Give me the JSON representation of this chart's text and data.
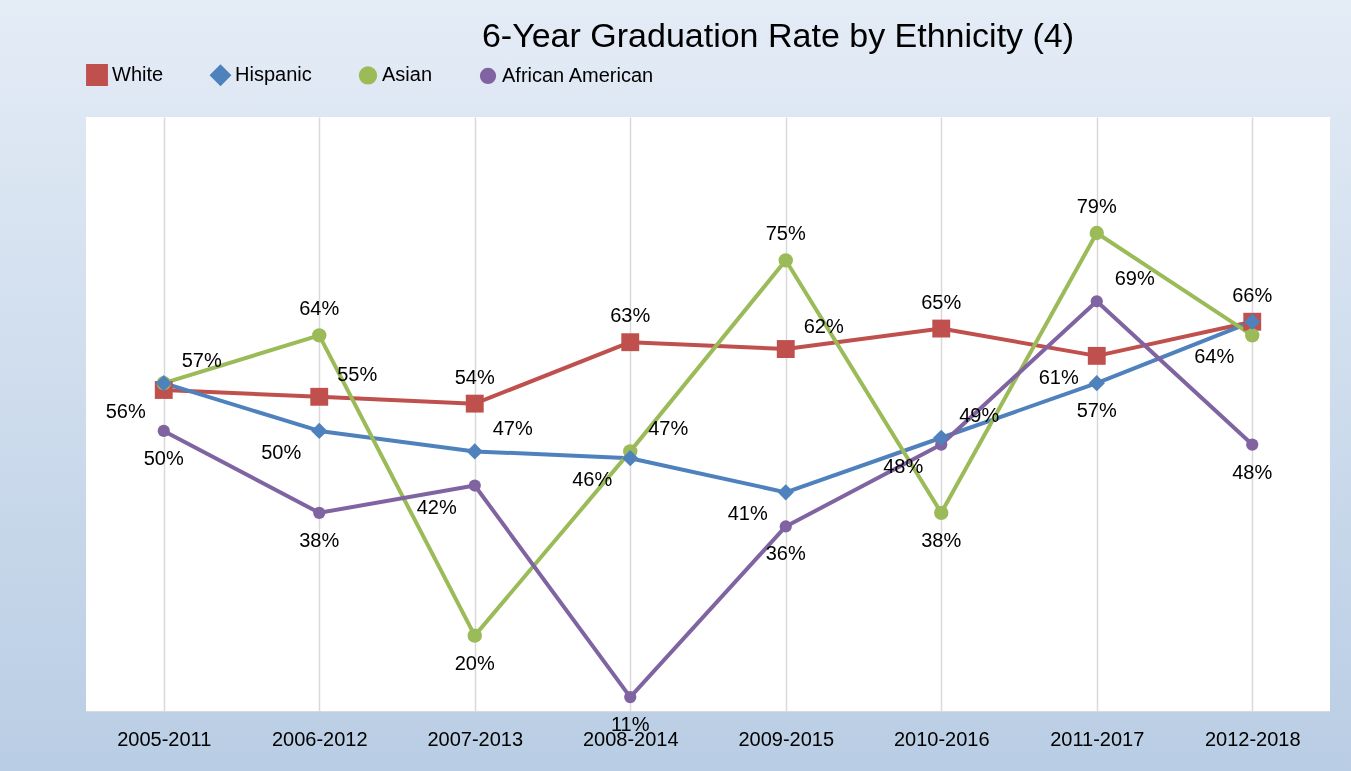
{
  "chart_data": {
    "type": "line",
    "title": "6-Year Graduation Rate by Ethnicity (4)",
    "categories": [
      "2005-2011",
      "2006-2012",
      "2007-2013",
      "2008-2014",
      "2009-2015",
      "2010-2016",
      "2011-2017",
      "2012-2018"
    ],
    "series": [
      {
        "name": "White",
        "color": "#c0504d",
        "marker": "square",
        "values": [
          56,
          55,
          54,
          63,
          62,
          65,
          61,
          66
        ],
        "value_labels": [
          "56%",
          "55%",
          "54%",
          "63%",
          "62%",
          "65%",
          "61%",
          "66%"
        ]
      },
      {
        "name": "Hispanic",
        "color": "#4f81bd",
        "marker": "diamond",
        "values": [
          57,
          50,
          47,
          46,
          41,
          49,
          57,
          66
        ],
        "value_labels": [
          null,
          "50%",
          "47%",
          "46%",
          "41%",
          "49%",
          "57%",
          null
        ]
      },
      {
        "name": "Asian",
        "color": "#9bbb59",
        "marker": "circle",
        "values": [
          57,
          64,
          20,
          47,
          75,
          38,
          79,
          64
        ],
        "value_labels": [
          "57%",
          "64%",
          "20%",
          "47%",
          "75%",
          "38%",
          "79%",
          "64%"
        ]
      },
      {
        "name": "African American",
        "color": "#8064a2",
        "marker": "circle",
        "values": [
          50,
          38,
          42,
          11,
          36,
          48,
          69,
          48
        ],
        "value_labels": [
          "50%",
          "38%",
          "42%",
          "11%",
          "36%",
          "48%",
          "69%",
          "48%"
        ]
      }
    ],
    "grid": "x",
    "legend": "top"
  }
}
